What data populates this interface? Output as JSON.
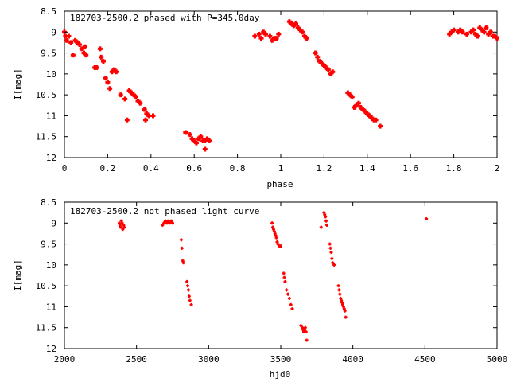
{
  "chart_data": [
    {
      "type": "scatter",
      "title": "182703-2500.2 phased with P=345.0day",
      "xlabel": "phase",
      "ylabel": "I[mag]",
      "xlim": [
        0,
        2
      ],
      "ylim": [
        8.5,
        12
      ],
      "y_inverted": true,
      "x_ticks": [
        "0",
        "0.2",
        "0.4",
        "0.6",
        "0.8",
        "1",
        "1.2",
        "1.4",
        "1.6",
        "1.8",
        "2"
      ],
      "x_tick_values": [
        0,
        0.2,
        0.4,
        0.6,
        0.8,
        1,
        1.2,
        1.4,
        1.6,
        1.8,
        2
      ],
      "y_ticks": [
        "8.5",
        "9",
        "9.5",
        "10",
        "10.5",
        "11",
        "11.5",
        "12"
      ],
      "y_tick_values": [
        8.5,
        9,
        9.5,
        10,
        10.5,
        11,
        11.5,
        12
      ],
      "grid": false,
      "marker_color": "#ff0000",
      "marker": "cross",
      "points": [
        [
          0.0,
          9.0
        ],
        [
          0.005,
          9.1
        ],
        [
          0.01,
          9.2
        ],
        [
          0.02,
          9.1
        ],
        [
          0.03,
          9.25
        ],
        [
          0.04,
          9.55
        ],
        [
          0.05,
          9.2
        ],
        [
          0.06,
          9.25
        ],
        [
          0.07,
          9.3
        ],
        [
          0.08,
          9.4
        ],
        [
          0.09,
          9.5
        ],
        [
          0.095,
          9.35
        ],
        [
          0.1,
          9.55
        ],
        [
          0.14,
          9.85
        ],
        [
          0.15,
          9.85
        ],
        [
          0.165,
          9.4
        ],
        [
          0.17,
          9.6
        ],
        [
          0.18,
          9.7
        ],
        [
          0.19,
          10.1
        ],
        [
          0.2,
          10.2
        ],
        [
          0.21,
          10.35
        ],
        [
          0.22,
          9.95
        ],
        [
          0.23,
          9.9
        ],
        [
          0.24,
          9.95
        ],
        [
          0.26,
          10.5
        ],
        [
          0.28,
          10.6
        ],
        [
          0.29,
          11.1
        ],
        [
          0.3,
          10.4
        ],
        [
          0.31,
          10.45
        ],
        [
          0.32,
          10.5
        ],
        [
          0.33,
          10.55
        ],
        [
          0.34,
          10.65
        ],
        [
          0.35,
          10.7
        ],
        [
          0.37,
          10.85
        ],
        [
          0.375,
          11.1
        ],
        [
          0.38,
          10.95
        ],
        [
          0.39,
          11.0
        ],
        [
          0.41,
          11.0
        ],
        [
          0.56,
          11.4
        ],
        [
          0.58,
          11.45
        ],
        [
          0.59,
          11.55
        ],
        [
          0.6,
          11.6
        ],
        [
          0.61,
          11.65
        ],
        [
          0.62,
          11.55
        ],
        [
          0.63,
          11.5
        ],
        [
          0.64,
          11.6
        ],
        [
          0.65,
          11.6
        ],
        [
          0.65,
          11.8
        ],
        [
          0.66,
          11.55
        ],
        [
          0.67,
          11.6
        ],
        [
          0.88,
          9.1
        ],
        [
          0.9,
          9.05
        ],
        [
          0.91,
          9.15
        ],
        [
          0.92,
          9.0
        ],
        [
          0.93,
          9.05
        ],
        [
          0.95,
          9.1
        ],
        [
          0.96,
          9.2
        ],
        [
          0.97,
          9.15
        ],
        [
          0.98,
          9.15
        ],
        [
          0.99,
          9.05
        ],
        [
          1.04,
          8.75
        ],
        [
          1.05,
          8.8
        ],
        [
          1.06,
          8.85
        ],
        [
          1.07,
          8.8
        ],
        [
          1.08,
          8.9
        ],
        [
          1.09,
          8.95
        ],
        [
          1.1,
          9.0
        ],
        [
          1.11,
          9.1
        ],
        [
          1.12,
          9.15
        ],
        [
          1.16,
          9.5
        ],
        [
          1.17,
          9.6
        ],
        [
          1.18,
          9.7
        ],
        [
          1.19,
          9.75
        ],
        [
          1.2,
          9.8
        ],
        [
          1.21,
          9.85
        ],
        [
          1.22,
          9.9
        ],
        [
          1.23,
          10.0
        ],
        [
          1.24,
          9.95
        ],
        [
          1.31,
          10.45
        ],
        [
          1.32,
          10.5
        ],
        [
          1.33,
          10.55
        ],
        [
          1.34,
          10.8
        ],
        [
          1.35,
          10.75
        ],
        [
          1.36,
          10.7
        ],
        [
          1.37,
          10.8
        ],
        [
          1.38,
          10.85
        ],
        [
          1.39,
          10.9
        ],
        [
          1.4,
          10.95
        ],
        [
          1.41,
          11.0
        ],
        [
          1.42,
          11.05
        ],
        [
          1.43,
          11.1
        ],
        [
          1.44,
          11.1
        ],
        [
          1.46,
          11.25
        ],
        [
          1.78,
          9.05
        ],
        [
          1.79,
          9.0
        ],
        [
          1.8,
          8.95
        ],
        [
          1.82,
          9.0
        ],
        [
          1.83,
          8.95
        ],
        [
          1.84,
          9.0
        ],
        [
          1.86,
          9.05
        ],
        [
          1.88,
          9.0
        ],
        [
          1.89,
          8.95
        ],
        [
          1.9,
          9.05
        ],
        [
          1.91,
          9.1
        ],
        [
          1.92,
          8.9
        ],
        [
          1.93,
          8.95
        ],
        [
          1.94,
          9.0
        ],
        [
          1.95,
          8.9
        ],
        [
          1.96,
          9.05
        ],
        [
          1.97,
          9.0
        ],
        [
          1.98,
          9.1
        ],
        [
          1.99,
          9.1
        ],
        [
          2.0,
          9.15
        ]
      ]
    },
    {
      "type": "scatter",
      "title": "182703-2500.2 not phased light curve",
      "xlabel": "hjd0",
      "ylabel": "I[mag]",
      "xlim": [
        2000,
        5000
      ],
      "ylim": [
        8.5,
        12
      ],
      "y_inverted": true,
      "x_ticks": [
        "2000",
        "2500",
        "3000",
        "3500",
        "4000",
        "4500",
        "5000"
      ],
      "x_tick_values": [
        2000,
        2500,
        3000,
        3500,
        4000,
        4500,
        5000
      ],
      "y_ticks": [
        "8.5",
        "9",
        "9.5",
        "10",
        "10.5",
        "11",
        "11.5",
        "12"
      ],
      "y_tick_values": [
        8.5,
        9,
        9.5,
        10,
        10.5,
        11,
        11.5,
        12
      ],
      "grid": false,
      "marker_color": "#ff0000",
      "marker": "cross",
      "points": [
        [
          2380,
          9.0
        ],
        [
          2385,
          9.05
        ],
        [
          2390,
          9.1
        ],
        [
          2395,
          8.95
        ],
        [
          2400,
          9.0
        ],
        [
          2405,
          9.15
        ],
        [
          2410,
          9.05
        ],
        [
          2415,
          9.1
        ],
        [
          2680,
          9.05
        ],
        [
          2690,
          9.0
        ],
        [
          2700,
          8.95
        ],
        [
          2710,
          9.0
        ],
        [
          2720,
          8.95
        ],
        [
          2730,
          9.0
        ],
        [
          2740,
          8.95
        ],
        [
          2750,
          9.0
        ],
        [
          2810,
          9.4
        ],
        [
          2815,
          9.6
        ],
        [
          2820,
          9.9
        ],
        [
          2825,
          9.95
        ],
        [
          2850,
          10.4
        ],
        [
          2855,
          10.5
        ],
        [
          2860,
          10.6
        ],
        [
          2865,
          10.75
        ],
        [
          2870,
          10.85
        ],
        [
          2880,
          10.95
        ],
        [
          3440,
          9.0
        ],
        [
          3445,
          9.1
        ],
        [
          3450,
          9.15
        ],
        [
          3455,
          9.2
        ],
        [
          3460,
          9.25
        ],
        [
          3465,
          9.3
        ],
        [
          3470,
          9.35
        ],
        [
          3475,
          9.45
        ],
        [
          3480,
          9.5
        ],
        [
          3490,
          9.55
        ],
        [
          3500,
          9.55
        ],
        [
          3520,
          10.2
        ],
        [
          3525,
          10.3
        ],
        [
          3530,
          10.4
        ],
        [
          3540,
          10.6
        ],
        [
          3550,
          10.7
        ],
        [
          3560,
          10.8
        ],
        [
          3570,
          10.95
        ],
        [
          3580,
          11.05
        ],
        [
          3640,
          11.45
        ],
        [
          3650,
          11.5
        ],
        [
          3655,
          11.55
        ],
        [
          3660,
          11.6
        ],
        [
          3665,
          11.55
        ],
        [
          3670,
          11.5
        ],
        [
          3675,
          11.6
        ],
        [
          3680,
          11.8
        ],
        [
          3780,
          9.1
        ],
        [
          3800,
          8.75
        ],
        [
          3805,
          8.8
        ],
        [
          3810,
          8.85
        ],
        [
          3815,
          8.95
        ],
        [
          3820,
          9.05
        ],
        [
          3840,
          9.5
        ],
        [
          3845,
          9.6
        ],
        [
          3850,
          9.7
        ],
        [
          3855,
          9.85
        ],
        [
          3860,
          9.95
        ],
        [
          3870,
          10.0
        ],
        [
          3900,
          10.5
        ],
        [
          3905,
          10.6
        ],
        [
          3910,
          10.7
        ],
        [
          3915,
          10.8
        ],
        [
          3920,
          10.85
        ],
        [
          3925,
          10.9
        ],
        [
          3930,
          10.95
        ],
        [
          3935,
          11.0
        ],
        [
          3940,
          11.05
        ],
        [
          3945,
          11.1
        ],
        [
          3950,
          11.25
        ],
        [
          4510,
          8.9
        ]
      ]
    }
  ]
}
